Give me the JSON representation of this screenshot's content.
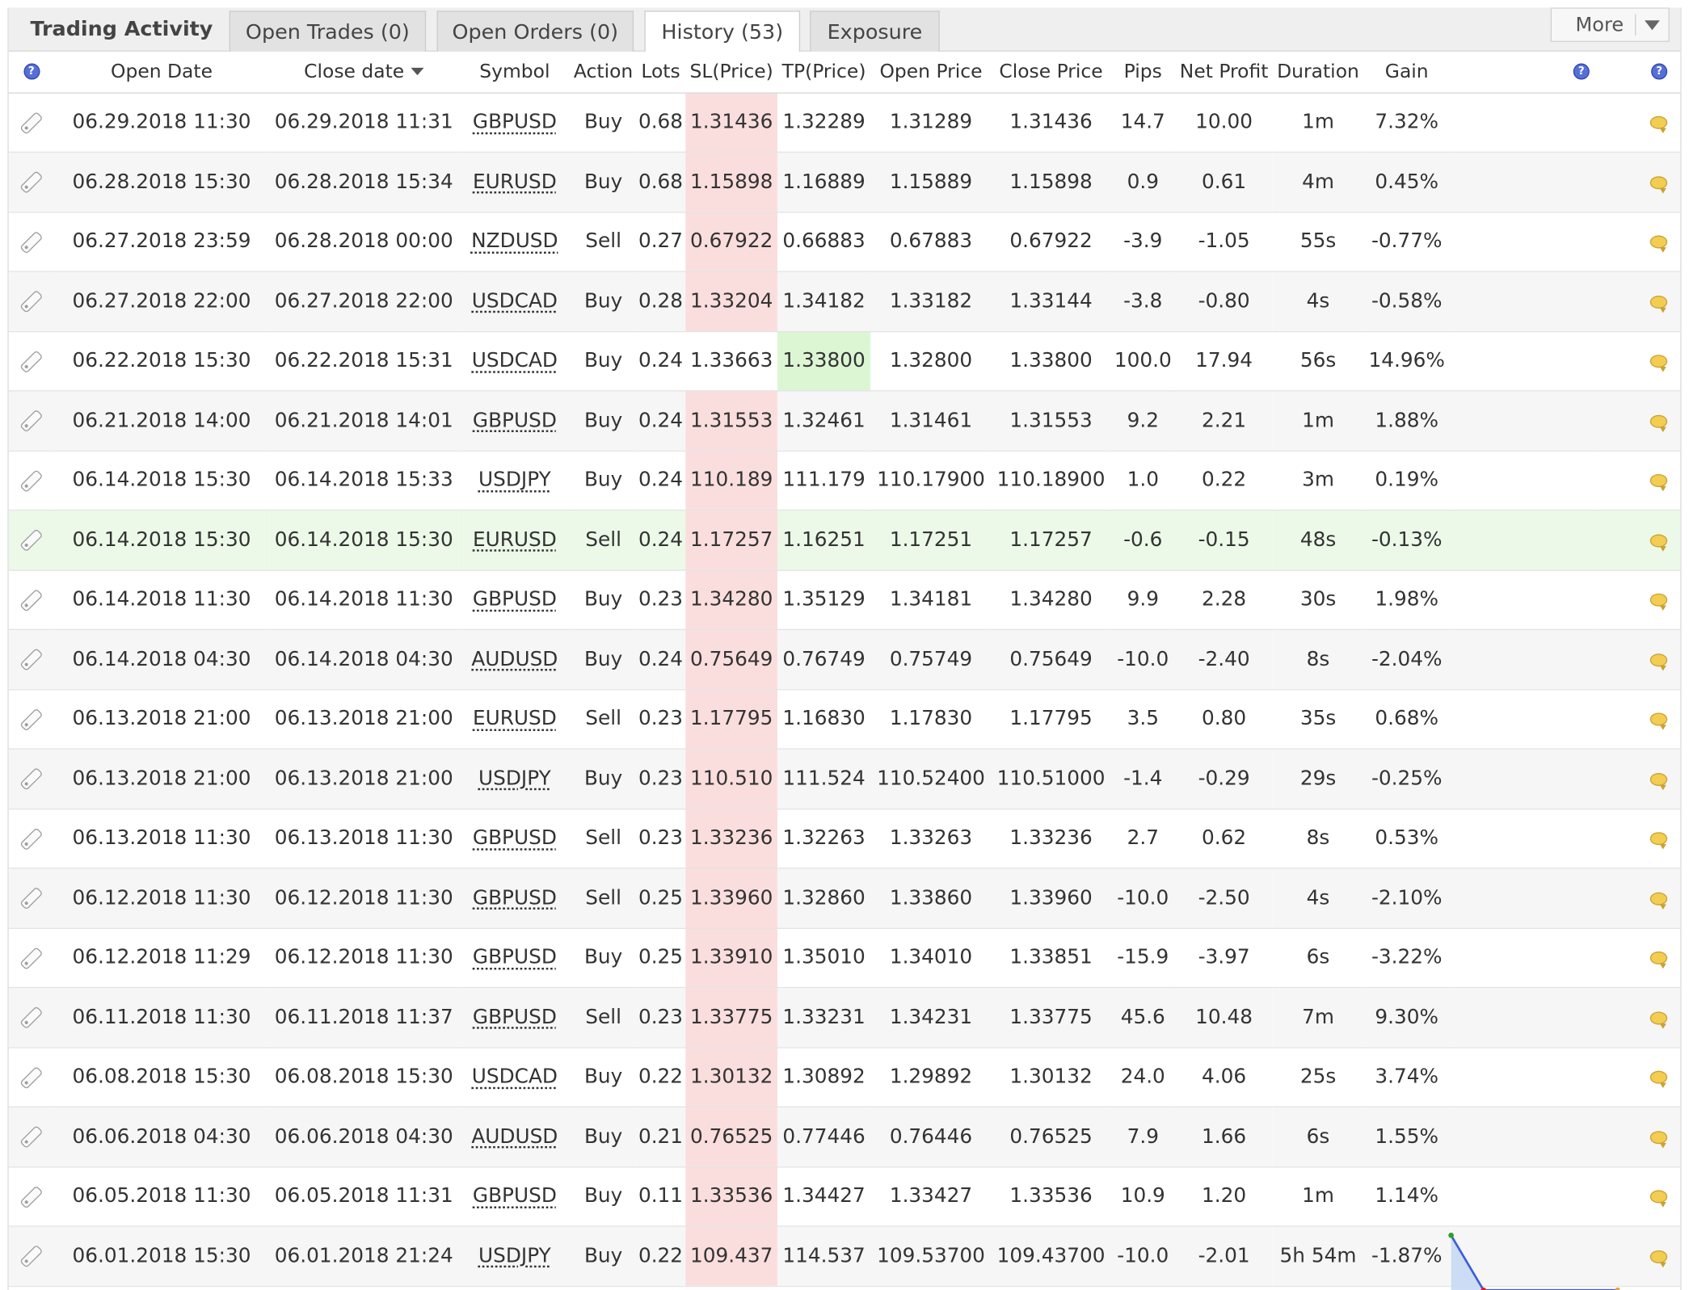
{
  "header": {
    "title": "Trading Activity",
    "tabs": [
      {
        "label": "Open Trades (0)"
      },
      {
        "label": "Open Orders (0)"
      },
      {
        "label": "History (53)"
      },
      {
        "label": "Exposure"
      }
    ],
    "active_tab": "History (53)",
    "more_label": "More"
  },
  "columns": {
    "open_date": "Open Date",
    "close_date": "Close date",
    "symbol": "Symbol",
    "action": "Action",
    "lots": "Lots",
    "sl": "SL(Price)",
    "tp": "TP(Price)",
    "open_price": "Open Price",
    "close_price": "Close Price",
    "pips": "Pips",
    "net_profit": "Net Profit",
    "duration": "Duration",
    "gain": "Gain"
  },
  "colors": {
    "positive": "#11a011",
    "negative": "#e02020",
    "sl_highlight": "#fadede",
    "tp_highlight": "#dcf6d4",
    "selected_row": "#ecf9e8"
  },
  "trades": [
    {
      "open": "06.29.2018 11:30",
      "close": "06.29.2018 11:31",
      "symbol": "GBPUSD",
      "action": "Buy",
      "lots": "0.68",
      "sl": "1.31436",
      "tp": "1.32289",
      "open_price": "1.31289",
      "close_price": "1.31436",
      "pips": "14.7",
      "profit": "10.00",
      "duration": "1m",
      "gain": "7.32%",
      "hit": "sl"
    },
    {
      "open": "06.28.2018 15:30",
      "close": "06.28.2018 15:34",
      "symbol": "EURUSD",
      "action": "Buy",
      "lots": "0.68",
      "sl": "1.15898",
      "tp": "1.16889",
      "open_price": "1.15889",
      "close_price": "1.15898",
      "pips": "0.9",
      "profit": "0.61",
      "duration": "4m",
      "gain": "0.45%",
      "hit": "sl"
    },
    {
      "open": "06.27.2018 23:59",
      "close": "06.28.2018 00:00",
      "symbol": "NZDUSD",
      "action": "Sell",
      "lots": "0.27",
      "sl": "0.67922",
      "tp": "0.66883",
      "open_price": "0.67883",
      "close_price": "0.67922",
      "pips": "-3.9",
      "profit": "-1.05",
      "duration": "55s",
      "gain": "-0.77%",
      "hit": "sl"
    },
    {
      "open": "06.27.2018 22:00",
      "close": "06.27.2018 22:00",
      "symbol": "USDCAD",
      "action": "Buy",
      "lots": "0.28",
      "sl": "1.33204",
      "tp": "1.34182",
      "open_price": "1.33182",
      "close_price": "1.33144",
      "pips": "-3.8",
      "profit": "-0.80",
      "duration": "4s",
      "gain": "-0.58%",
      "hit": "sl"
    },
    {
      "open": "06.22.2018 15:30",
      "close": "06.22.2018 15:31",
      "symbol": "USDCAD",
      "action": "Buy",
      "lots": "0.24",
      "sl": "1.33663",
      "tp": "1.33800",
      "open_price": "1.32800",
      "close_price": "1.33800",
      "pips": "100.0",
      "profit": "17.94",
      "duration": "56s",
      "gain": "14.96%",
      "hit": "tp"
    },
    {
      "open": "06.21.2018 14:00",
      "close": "06.21.2018 14:01",
      "symbol": "GBPUSD",
      "action": "Buy",
      "lots": "0.24",
      "sl": "1.31553",
      "tp": "1.32461",
      "open_price": "1.31461",
      "close_price": "1.31553",
      "pips": "9.2",
      "profit": "2.21",
      "duration": "1m",
      "gain": "1.88%",
      "hit": "sl"
    },
    {
      "open": "06.14.2018 15:30",
      "close": "06.14.2018 15:33",
      "symbol": "USDJPY",
      "action": "Buy",
      "lots": "0.24",
      "sl": "110.189",
      "tp": "111.179",
      "open_price": "110.17900",
      "close_price": "110.18900",
      "pips": "1.0",
      "profit": "0.22",
      "duration": "3m",
      "gain": "0.19%",
      "hit": "sl"
    },
    {
      "open": "06.14.2018 15:30",
      "close": "06.14.2018 15:30",
      "symbol": "EURUSD",
      "action": "Sell",
      "lots": "0.24",
      "sl": "1.17257",
      "tp": "1.16251",
      "open_price": "1.17251",
      "close_price": "1.17257",
      "pips": "-0.6",
      "profit": "-0.15",
      "duration": "48s",
      "gain": "-0.13%",
      "hit": "sl",
      "selected": true
    },
    {
      "open": "06.14.2018 11:30",
      "close": "06.14.2018 11:30",
      "symbol": "GBPUSD",
      "action": "Buy",
      "lots": "0.23",
      "sl": "1.34280",
      "tp": "1.35129",
      "open_price": "1.34181",
      "close_price": "1.34280",
      "pips": "9.9",
      "profit": "2.28",
      "duration": "30s",
      "gain": "1.98%",
      "hit": "sl"
    },
    {
      "open": "06.14.2018 04:30",
      "close": "06.14.2018 04:30",
      "symbol": "AUDUSD",
      "action": "Buy",
      "lots": "0.24",
      "sl": "0.75649",
      "tp": "0.76749",
      "open_price": "0.75749",
      "close_price": "0.75649",
      "pips": "-10.0",
      "profit": "-2.40",
      "duration": "8s",
      "gain": "-2.04%",
      "hit": "sl"
    },
    {
      "open": "06.13.2018 21:00",
      "close": "06.13.2018 21:00",
      "symbol": "EURUSD",
      "action": "Sell",
      "lots": "0.23",
      "sl": "1.17795",
      "tp": "1.16830",
      "open_price": "1.17830",
      "close_price": "1.17795",
      "pips": "3.5",
      "profit": "0.80",
      "duration": "35s",
      "gain": "0.68%",
      "hit": "sl"
    },
    {
      "open": "06.13.2018 21:00",
      "close": "06.13.2018 21:00",
      "symbol": "USDJPY",
      "action": "Buy",
      "lots": "0.23",
      "sl": "110.510",
      "tp": "111.524",
      "open_price": "110.52400",
      "close_price": "110.51000",
      "pips": "-1.4",
      "profit": "-0.29",
      "duration": "29s",
      "gain": "-0.25%",
      "hit": "sl"
    },
    {
      "open": "06.13.2018 11:30",
      "close": "06.13.2018 11:30",
      "symbol": "GBPUSD",
      "action": "Sell",
      "lots": "0.23",
      "sl": "1.33236",
      "tp": "1.32263",
      "open_price": "1.33263",
      "close_price": "1.33236",
      "pips": "2.7",
      "profit": "0.62",
      "duration": "8s",
      "gain": "0.53%",
      "hit": "sl"
    },
    {
      "open": "06.12.2018 11:30",
      "close": "06.12.2018 11:30",
      "symbol": "GBPUSD",
      "action": "Sell",
      "lots": "0.25",
      "sl": "1.33960",
      "tp": "1.32860",
      "open_price": "1.33860",
      "close_price": "1.33960",
      "pips": "-10.0",
      "profit": "-2.50",
      "duration": "4s",
      "gain": "-2.10%",
      "hit": "sl"
    },
    {
      "open": "06.12.2018 11:29",
      "close": "06.12.2018 11:30",
      "symbol": "GBPUSD",
      "action": "Buy",
      "lots": "0.25",
      "sl": "1.33910",
      "tp": "1.35010",
      "open_price": "1.34010",
      "close_price": "1.33851",
      "pips": "-15.9",
      "profit": "-3.97",
      "duration": "6s",
      "gain": "-3.22%",
      "hit": "sl"
    },
    {
      "open": "06.11.2018 11:30",
      "close": "06.11.2018 11:37",
      "symbol": "GBPUSD",
      "action": "Sell",
      "lots": "0.23",
      "sl": "1.33775",
      "tp": "1.33231",
      "open_price": "1.34231",
      "close_price": "1.33775",
      "pips": "45.6",
      "profit": "10.48",
      "duration": "7m",
      "gain": "9.30%",
      "hit": "sl"
    },
    {
      "open": "06.08.2018 15:30",
      "close": "06.08.2018 15:30",
      "symbol": "USDCAD",
      "action": "Buy",
      "lots": "0.22",
      "sl": "1.30132",
      "tp": "1.30892",
      "open_price": "1.29892",
      "close_price": "1.30132",
      "pips": "24.0",
      "profit": "4.06",
      "duration": "25s",
      "gain": "3.74%",
      "hit": "sl"
    },
    {
      "open": "06.06.2018 04:30",
      "close": "06.06.2018 04:30",
      "symbol": "AUDUSD",
      "action": "Buy",
      "lots": "0.21",
      "sl": "0.76525",
      "tp": "0.77446",
      "open_price": "0.76446",
      "close_price": "0.76525",
      "pips": "7.9",
      "profit": "1.66",
      "duration": "6s",
      "gain": "1.55%",
      "hit": "sl"
    },
    {
      "open": "06.05.2018 11:30",
      "close": "06.05.2018 11:31",
      "symbol": "GBPUSD",
      "action": "Buy",
      "lots": "0.11",
      "sl": "1.33536",
      "tp": "1.34427",
      "open_price": "1.33427",
      "close_price": "1.33536",
      "pips": "10.9",
      "profit": "1.20",
      "duration": "1m",
      "gain": "1.14%",
      "hit": "sl"
    },
    {
      "open": "06.01.2018 15:30",
      "close": "06.01.2018 21:24",
      "symbol": "USDJPY",
      "action": "Buy",
      "lots": "0.22",
      "sl": "109.437",
      "tp": "114.537",
      "open_price": "109.53700",
      "close_price": "109.43700",
      "pips": "-10.0",
      "profit": "-2.01",
      "duration": "5h 54m",
      "gain": "-1.87%",
      "hit": "sl",
      "sparkline": true
    }
  ]
}
